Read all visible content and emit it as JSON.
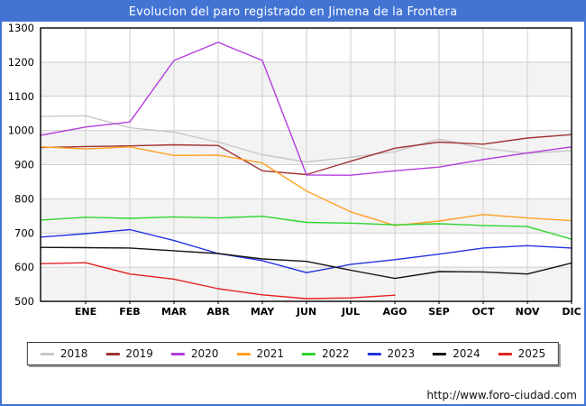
{
  "window": {
    "title": "Evolucion del paro registrado en Jimena de la Frontera",
    "frame_color": "#4274d4"
  },
  "footer": {
    "url": "http://www.foro-ciudad.com"
  },
  "chart_data": {
    "type": "line",
    "title": "Evolucion del paro registrado en Jimena de la Frontera",
    "categories": [
      "ENE",
      "FEB",
      "MAR",
      "ABR",
      "MAY",
      "JUN",
      "JUL",
      "AGO",
      "SEP",
      "OCT",
      "NOV",
      "DIC"
    ],
    "x_note": "Each full-year series has 13 points: a start value drawn at the left axis followed by the 12 monthly values ENE-DIC at the gridlines. 2025 runs only through AGO.",
    "ylim": [
      500,
      1300
    ],
    "ytick_step": 100,
    "grid": true,
    "band_fill": "#f3f3f3",
    "gridline_color": "#cfcfcf",
    "legend_position": "bottom",
    "series": [
      {
        "name": "2018",
        "color": "#c8c8c8",
        "values": [
          1041,
          1043,
          1008,
          995,
          966,
          929,
          908,
          922,
          938,
          975,
          948,
          933,
          941
        ]
      },
      {
        "name": "2019",
        "color": "#a03232",
        "values": [
          950,
          953,
          955,
          958,
          956,
          882,
          871,
          910,
          948,
          966,
          960,
          978,
          988
        ]
      },
      {
        "name": "2020",
        "color": "#b43bdc",
        "values": [
          986,
          1010,
          1025,
          1205,
          1258,
          1205,
          870,
          869,
          882,
          893,
          915,
          934,
          952
        ]
      },
      {
        "name": "2021",
        "color": "#ffa022",
        "values": [
          952,
          946,
          952,
          927,
          928,
          905,
          823,
          762,
          722,
          735,
          754,
          744,
          736
        ]
      },
      {
        "name": "2022",
        "color": "#2ed52e",
        "values": [
          738,
          746,
          743,
          747,
          744,
          749,
          731,
          729,
          724,
          727,
          722,
          719,
          682
        ]
      },
      {
        "name": "2023",
        "color": "#2233dd",
        "values": [
          688,
          698,
          710,
          678,
          640,
          619,
          584,
          608,
          622,
          638,
          656,
          663,
          656
        ]
      },
      {
        "name": "2024",
        "color": "#151515",
        "values": [
          658,
          657,
          656,
          648,
          640,
          624,
          617,
          591,
          567,
          587,
          586,
          580,
          612
        ]
      },
      {
        "name": "2025",
        "color": "#e62020",
        "values": [
          610,
          613,
          580,
          565,
          537,
          519,
          508,
          510,
          518
        ]
      }
    ]
  }
}
